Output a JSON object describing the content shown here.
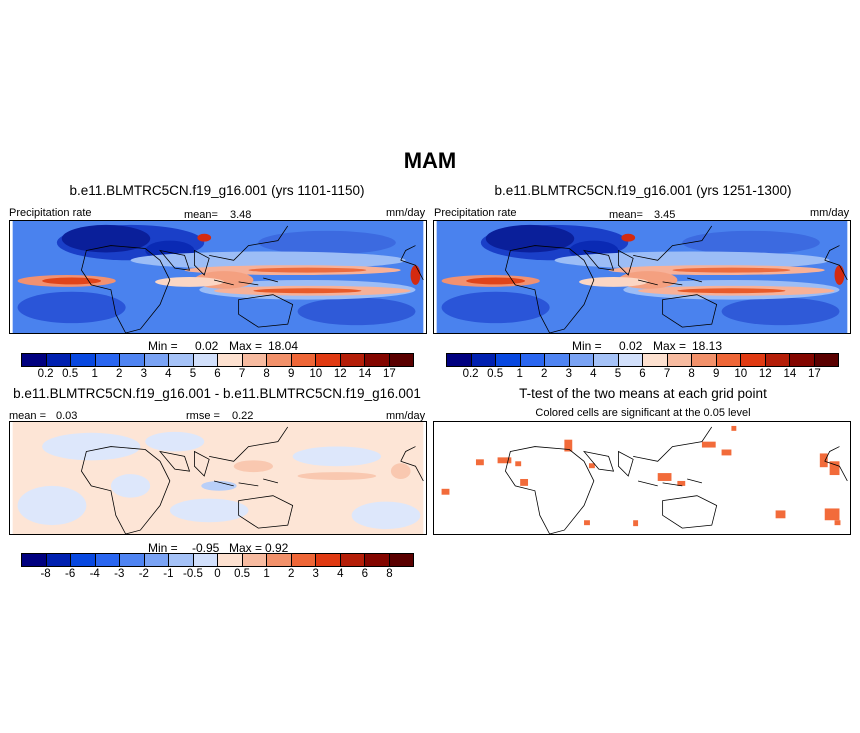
{
  "title": "MAM",
  "chart_data": [
    {
      "type": "heatmap",
      "title": "b.e11.BLMTRC5CN.f19_g16.001 (yrs 1101-1150)",
      "left_label": "Precipitation rate",
      "mean_label": "mean=",
      "mean_value": "3.48",
      "units": "mm/day",
      "minmax": {
        "min_label": "Min =",
        "min": "0.02",
        "max_label": "Max =",
        "max": "18.04"
      },
      "colorbar_levels": [
        "0.2",
        "0.5",
        "1",
        "2",
        "3",
        "4",
        "5",
        "6",
        "7",
        "8",
        "9",
        "10",
        "12",
        "14",
        "17"
      ]
    },
    {
      "type": "heatmap",
      "title": "b.e11.BLMTRC5CN.f19_g16.001 (yrs 1251-1300)",
      "left_label": "Precipitation rate",
      "mean_label": "mean=",
      "mean_value": "3.45",
      "units": "mm/day",
      "minmax": {
        "min_label": "Min =",
        "min": "0.02",
        "max_label": "Max =",
        "max": "18.13"
      },
      "colorbar_levels": [
        "0.2",
        "0.5",
        "1",
        "2",
        "3",
        "4",
        "5",
        "6",
        "7",
        "8",
        "9",
        "10",
        "12",
        "14",
        "17"
      ]
    },
    {
      "type": "heatmap",
      "title": "b.e11.BLMTRC5CN.f19_g16.001 - b.e11.BLMTRC5CN.f19_g16.001",
      "mean_label": "mean =",
      "mean_value": "0.03",
      "rmse_label": "rmse =",
      "rmse_value": "0.22",
      "units": "mm/day",
      "minmax": {
        "min_label": "Min =",
        "min": "-0.95",
        "max_label": "Max =",
        "max": "0.92"
      },
      "colorbar_levels": [
        "-8",
        "-6",
        "-4",
        "-3",
        "-2",
        "-1",
        "-0.5",
        "0",
        "0.5",
        "1",
        "2",
        "3",
        "4",
        "6",
        "8"
      ]
    },
    {
      "type": "heatmap",
      "title": "T-test of the two means at each grid point",
      "subtitle": "Colored cells are significant at the 0.05 level"
    }
  ],
  "colors": {
    "precip_scale": [
      "#00007f",
      "#0020b0",
      "#0848e0",
      "#2a66f0",
      "#4f84f2",
      "#7aa3f4",
      "#a5c2f7",
      "#d2e0fb",
      "#fde1d0",
      "#f7bba0",
      "#f2916a",
      "#ee6637",
      "#e03a12",
      "#b41e08",
      "#830600"
    ],
    "diff_scale": [
      "#00007f",
      "#0020b0",
      "#0848e0",
      "#2a66f0",
      "#4f84f2",
      "#7aa3f4",
      "#a5c2f7",
      "#d2e0fb",
      "#fde1d0",
      "#f7bba0",
      "#f2916a",
      "#ee6637",
      "#e03a12",
      "#b41e08",
      "#830600",
      "#5a0000"
    ],
    "significant": "#f26b3a"
  }
}
